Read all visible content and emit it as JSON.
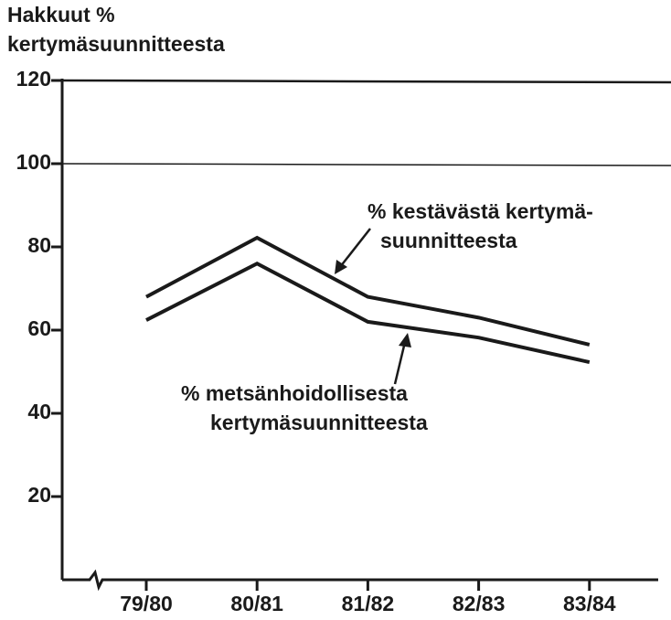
{
  "chart_data": {
    "type": "line",
    "ylabel": "Hakkuut %\nkertymäsuunnitteesta",
    "categories": [
      "79/80",
      "80/81",
      "81/82",
      "82/83",
      "83/84"
    ],
    "series": [
      {
        "name": "% kestävästä kertymä-\nsuunnitteesta",
        "color": "#1a1a1a",
        "values": [
          68,
          82.2,
          68,
          63,
          56.5
        ]
      },
      {
        "name": "% metsänhoidollisesta\nkertymäsuunnitteesta",
        "color": "#1a1a1a",
        "values": [
          62.4,
          76,
          62,
          58.2,
          52.3
        ]
      }
    ],
    "ylim": [
      0,
      120
    ],
    "yticks": [
      20,
      40,
      60,
      80,
      100,
      120
    ],
    "hlines": [
      100,
      120
    ]
  }
}
